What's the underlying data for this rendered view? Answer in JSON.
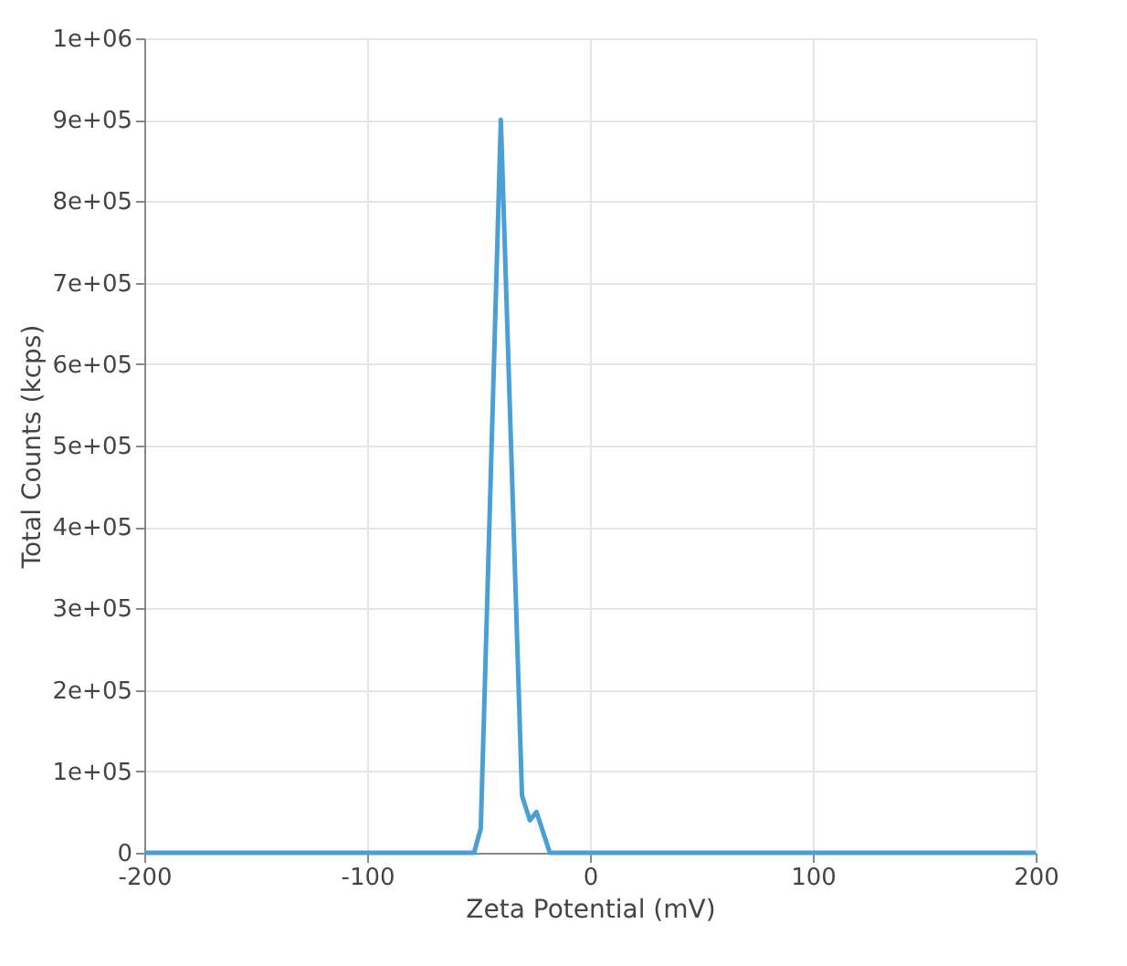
{
  "chart_data": {
    "type": "line",
    "xlabel": "Zeta Potential (mV)",
    "ylabel": "Total Counts (kcps)",
    "x": [
      -200,
      -52,
      -49,
      -40,
      -30.5,
      -27,
      -24,
      -18,
      200
    ],
    "series": [
      {
        "color": "#4a9fd4",
        "values": [
          0,
          0,
          30000,
          900000,
          70000,
          40000,
          50000,
          0,
          0
        ]
      }
    ],
    "xlim": [
      -200,
      200
    ],
    "xticks": [
      -200,
      -100,
      0,
      100,
      200
    ],
    "ylim": [
      0,
      1000000
    ],
    "yticks": [
      {
        "value": 0,
        "label": "0"
      },
      {
        "value": 100000,
        "label": "1e+05"
      },
      {
        "value": 200000,
        "label": "2e+05"
      },
      {
        "value": 300000,
        "label": "3e+05"
      },
      {
        "value": 400000,
        "label": "4e+05"
      },
      {
        "value": 500000,
        "label": "5e+05"
      },
      {
        "value": 600000,
        "label": "6e+05"
      },
      {
        "value": 700000,
        "label": "7e+05"
      },
      {
        "value": 800000,
        "label": "8e+05"
      },
      {
        "value": 900000,
        "label": "9e+05"
      },
      {
        "value": 1000000,
        "label": "1e+06"
      }
    ],
    "grid": true,
    "line_style": "solid"
  }
}
